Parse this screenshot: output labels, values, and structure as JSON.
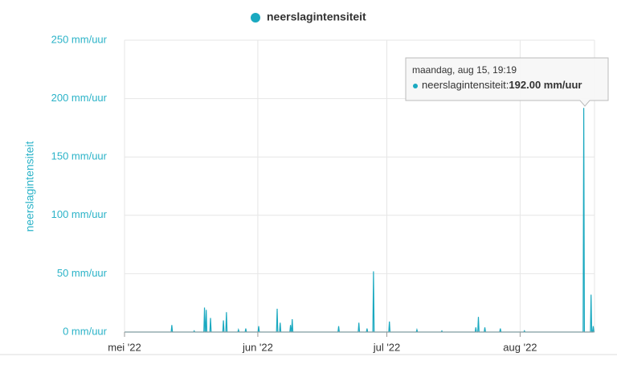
{
  "chart_data": {
    "type": "line",
    "y_label": "neerslagintensiteit",
    "x": [
      0,
      10.85,
      11,
      11.15,
      16.05,
      16.2,
      16.35,
      18.45,
      18.6,
      18.75,
      18.85,
      19,
      19.15,
      19.85,
      20,
      20.15,
      22.85,
      23,
      23.15,
      23.55,
      23.7,
      23.85,
      26.35,
      26.5,
      26.65,
      28.05,
      28.2,
      28.35,
      31.05,
      31.2,
      31.35,
      35.35,
      35.5,
      35.65,
      36.05,
      36.2,
      36.35,
      38.45,
      38.6,
      38.75,
      38.85,
      39,
      39.15,
      49.65,
      49.8,
      49.95,
      54.35,
      54.5,
      54.65,
      56.25,
      56.4,
      56.55,
      57.75,
      57.9,
      58.05,
      61.45,
      61.6,
      61.75,
      67.85,
      68,
      68.15,
      73.65,
      73.8,
      73.95,
      81.55,
      81.7,
      81.85,
      82.15,
      82.3,
      82.45,
      83.65,
      83.8,
      83.95,
      87.25,
      87.4,
      87.55,
      92.85,
      93,
      93.15,
      106.65,
      106.8,
      106.95,
      108.35,
      108.5,
      108.65,
      108.85,
      109,
      109.15
    ],
    "series": [
      {
        "name": "neerslagintensiteit",
        "color": "#1aa9c0",
        "values": [
          0,
          0,
          6,
          0,
          0,
          1,
          0,
          0,
          21,
          0,
          0,
          19,
          0,
          0,
          12,
          0,
          0,
          10,
          0,
          0,
          17,
          0,
          0,
          2,
          0,
          0,
          3,
          0,
          0,
          5,
          0,
          0,
          20,
          0,
          0,
          8,
          0,
          0,
          6,
          0,
          0,
          11,
          0,
          0,
          5,
          0,
          0,
          8,
          0,
          0,
          3,
          0,
          0,
          52,
          0,
          0,
          9,
          0,
          0,
          2,
          0,
          0,
          1,
          0,
          0,
          4,
          0,
          0,
          13,
          0,
          0,
          4,
          0,
          0,
          3,
          0,
          0,
          1,
          0,
          0,
          192,
          0,
          0,
          32,
          0,
          0,
          5,
          0
        ]
      }
    ],
    "xlim": [
      0,
      109.3
    ],
    "xticks": [
      {
        "value": 0,
        "label": "mei '22"
      },
      {
        "value": 31,
        "label": "jun '22"
      },
      {
        "value": 61,
        "label": "jul '22"
      },
      {
        "value": 92,
        "label": "aug '22"
      }
    ],
    "ylim": [
      0,
      250
    ],
    "yticks": [
      {
        "value": 0,
        "label": "0 mm/uur"
      },
      {
        "value": 50,
        "label": "50 mm/uur"
      },
      {
        "value": 100,
        "label": "100 mm/uur"
      },
      {
        "value": 150,
        "label": "150 mm/uur"
      },
      {
        "value": 200,
        "label": "200 mm/uur"
      },
      {
        "value": 250,
        "label": "250 mm/uur"
      }
    ],
    "grid": true,
    "tooltip": {
      "title": "maandag, aug 15, 19:19",
      "series_label": "neerslagintensiteit:",
      "value_label": "192.00 mm/uur"
    }
  }
}
